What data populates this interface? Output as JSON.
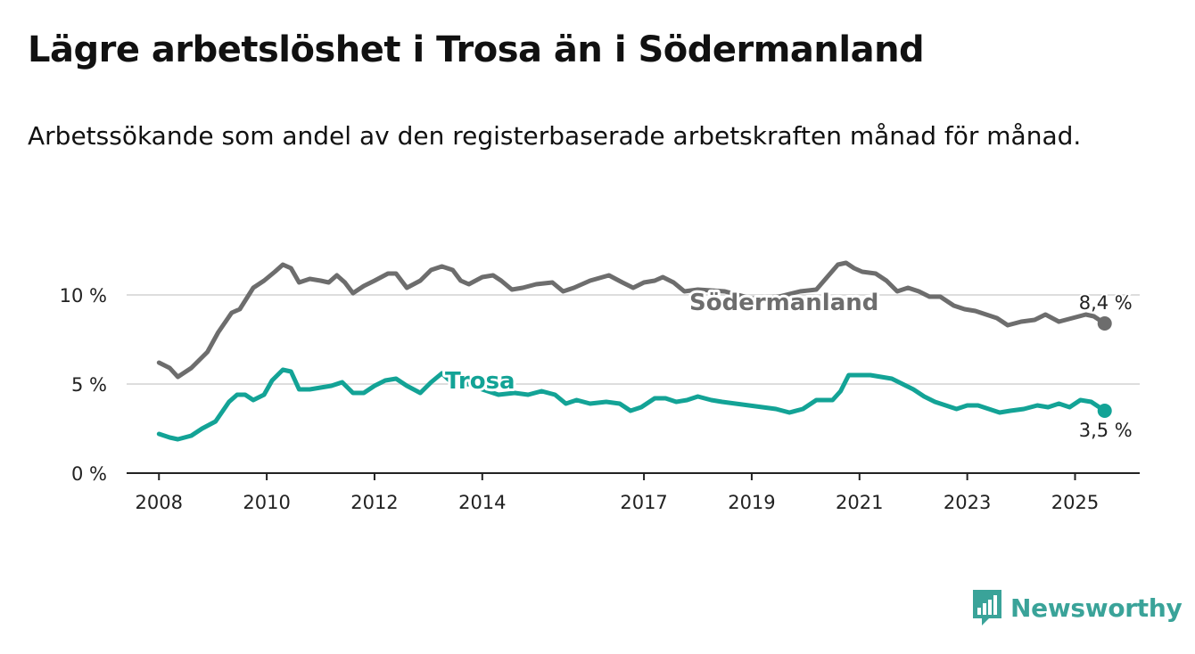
{
  "title": "Lägre arbetslöshet i Trosa än i Södermanland",
  "subtitle": "Arbetssökande som andel av den registerbaserade arbetskraften månad för månad.",
  "brand": {
    "name": "Newsworthy",
    "color": "#3aa399",
    "icon": "bar-chart-speech-icon"
  },
  "chart_data": {
    "type": "line",
    "x_ticks": [
      "2008",
      "2010",
      "2012",
      "2014",
      "2017",
      "2019",
      "2021",
      "2023",
      "2025"
    ],
    "y_ticks": [
      "0 %",
      "5 %",
      "10 %"
    ],
    "ylim": [
      0,
      12.5
    ],
    "xlim": [
      2007.4,
      2026.2
    ],
    "grid": true,
    "series": [
      {
        "name": "Södermanland",
        "color": "#6d6d6d",
        "end_label": "8,4 %",
        "points": [
          [
            2008.0,
            6.2
          ],
          [
            2008.2,
            5.9
          ],
          [
            2008.35,
            5.4
          ],
          [
            2008.6,
            5.9
          ],
          [
            2008.9,
            6.8
          ],
          [
            2009.1,
            7.9
          ],
          [
            2009.35,
            9.0
          ],
          [
            2009.5,
            9.2
          ],
          [
            2009.75,
            10.4
          ],
          [
            2009.95,
            10.8
          ],
          [
            2010.15,
            11.3
          ],
          [
            2010.3,
            11.7
          ],
          [
            2010.45,
            11.5
          ],
          [
            2010.6,
            10.7
          ],
          [
            2010.8,
            10.9
          ],
          [
            2011.0,
            10.8
          ],
          [
            2011.15,
            10.7
          ],
          [
            2011.3,
            11.1
          ],
          [
            2011.45,
            10.7
          ],
          [
            2011.6,
            10.1
          ],
          [
            2011.8,
            10.5
          ],
          [
            2012.0,
            10.8
          ],
          [
            2012.25,
            11.2
          ],
          [
            2012.4,
            11.2
          ],
          [
            2012.6,
            10.4
          ],
          [
            2012.85,
            10.8
          ],
          [
            2013.05,
            11.4
          ],
          [
            2013.25,
            11.6
          ],
          [
            2013.45,
            11.4
          ],
          [
            2013.6,
            10.8
          ],
          [
            2013.75,
            10.6
          ],
          [
            2014.0,
            11.0
          ],
          [
            2014.2,
            11.1
          ],
          [
            2014.35,
            10.8
          ],
          [
            2014.55,
            10.3
          ],
          [
            2014.75,
            10.4
          ],
          [
            2015.0,
            10.6
          ],
          [
            2015.3,
            10.7
          ],
          [
            2015.5,
            10.2
          ],
          [
            2015.7,
            10.4
          ],
          [
            2016.0,
            10.8
          ],
          [
            2016.35,
            11.1
          ],
          [
            2016.6,
            10.7
          ],
          [
            2016.8,
            10.4
          ],
          [
            2017.0,
            10.7
          ],
          [
            2017.2,
            10.8
          ],
          [
            2017.35,
            11.0
          ],
          [
            2017.55,
            10.7
          ],
          [
            2017.75,
            10.2
          ],
          [
            2018.0,
            10.3
          ],
          [
            2018.5,
            10.2
          ],
          [
            2019.0,
            9.8
          ],
          [
            2019.5,
            9.9
          ],
          [
            2019.9,
            10.2
          ],
          [
            2020.2,
            10.3
          ],
          [
            2020.4,
            11.0
          ],
          [
            2020.6,
            11.7
          ],
          [
            2020.75,
            11.8
          ],
          [
            2020.9,
            11.5
          ],
          [
            2021.05,
            11.3
          ],
          [
            2021.3,
            11.2
          ],
          [
            2021.5,
            10.8
          ],
          [
            2021.7,
            10.2
          ],
          [
            2021.9,
            10.4
          ],
          [
            2022.1,
            10.2
          ],
          [
            2022.3,
            9.9
          ],
          [
            2022.5,
            9.9
          ],
          [
            2022.75,
            9.4
          ],
          [
            2022.95,
            9.2
          ],
          [
            2023.15,
            9.1
          ],
          [
            2023.35,
            8.9
          ],
          [
            2023.55,
            8.7
          ],
          [
            2023.75,
            8.3
          ],
          [
            2024.0,
            8.5
          ],
          [
            2024.25,
            8.6
          ],
          [
            2024.45,
            8.9
          ],
          [
            2024.7,
            8.5
          ],
          [
            2024.95,
            8.7
          ],
          [
            2025.2,
            8.9
          ],
          [
            2025.35,
            8.8
          ],
          [
            2025.55,
            8.4
          ]
        ]
      },
      {
        "name": "Trosa",
        "color": "#13a396",
        "end_label": "3,5 %",
        "points": [
          [
            2008.0,
            2.2
          ],
          [
            2008.2,
            2.0
          ],
          [
            2008.35,
            1.9
          ],
          [
            2008.6,
            2.1
          ],
          [
            2008.8,
            2.5
          ],
          [
            2009.05,
            2.9
          ],
          [
            2009.3,
            4.0
          ],
          [
            2009.45,
            4.4
          ],
          [
            2009.6,
            4.4
          ],
          [
            2009.75,
            4.1
          ],
          [
            2009.95,
            4.4
          ],
          [
            2010.1,
            5.2
          ],
          [
            2010.3,
            5.8
          ],
          [
            2010.45,
            5.7
          ],
          [
            2010.6,
            4.7
          ],
          [
            2010.8,
            4.7
          ],
          [
            2011.0,
            4.8
          ],
          [
            2011.2,
            4.9
          ],
          [
            2011.4,
            5.1
          ],
          [
            2011.6,
            4.5
          ],
          [
            2011.8,
            4.5
          ],
          [
            2012.0,
            4.9
          ],
          [
            2012.2,
            5.2
          ],
          [
            2012.4,
            5.3
          ],
          [
            2012.6,
            4.9
          ],
          [
            2012.85,
            4.5
          ],
          [
            2013.05,
            5.1
          ],
          [
            2013.25,
            5.6
          ],
          [
            2013.5,
            4.9
          ],
          [
            2013.75,
            5.0
          ],
          [
            2014.0,
            4.7
          ],
          [
            2014.3,
            4.4
          ],
          [
            2014.6,
            4.5
          ],
          [
            2014.85,
            4.4
          ],
          [
            2015.1,
            4.6
          ],
          [
            2015.35,
            4.4
          ],
          [
            2015.55,
            3.9
          ],
          [
            2015.75,
            4.1
          ],
          [
            2016.0,
            3.9
          ],
          [
            2016.3,
            4.0
          ],
          [
            2016.55,
            3.9
          ],
          [
            2016.75,
            3.5
          ],
          [
            2016.95,
            3.7
          ],
          [
            2017.2,
            4.2
          ],
          [
            2017.4,
            4.2
          ],
          [
            2017.6,
            4.0
          ],
          [
            2017.8,
            4.1
          ],
          [
            2018.0,
            4.3
          ],
          [
            2018.25,
            4.1
          ],
          [
            2018.45,
            4.0
          ],
          [
            2018.7,
            3.9
          ],
          [
            2018.95,
            3.8
          ],
          [
            2019.2,
            3.7
          ],
          [
            2019.45,
            3.6
          ],
          [
            2019.7,
            3.4
          ],
          [
            2019.95,
            3.6
          ],
          [
            2020.2,
            4.1
          ],
          [
            2020.5,
            4.1
          ],
          [
            2020.65,
            4.6
          ],
          [
            2020.8,
            5.5
          ],
          [
            2021.0,
            5.5
          ],
          [
            2021.2,
            5.5
          ],
          [
            2021.4,
            5.4
          ],
          [
            2021.6,
            5.3
          ],
          [
            2021.8,
            5.0
          ],
          [
            2022.0,
            4.7
          ],
          [
            2022.2,
            4.3
          ],
          [
            2022.4,
            4.0
          ],
          [
            2022.6,
            3.8
          ],
          [
            2022.8,
            3.6
          ],
          [
            2023.0,
            3.8
          ],
          [
            2023.2,
            3.8
          ],
          [
            2023.4,
            3.6
          ],
          [
            2023.6,
            3.4
          ],
          [
            2023.8,
            3.5
          ],
          [
            2024.05,
            3.6
          ],
          [
            2024.3,
            3.8
          ],
          [
            2024.5,
            3.7
          ],
          [
            2024.7,
            3.9
          ],
          [
            2024.9,
            3.7
          ],
          [
            2025.1,
            4.1
          ],
          [
            2025.3,
            4.0
          ],
          [
            2025.55,
            3.5
          ]
        ]
      }
    ]
  }
}
